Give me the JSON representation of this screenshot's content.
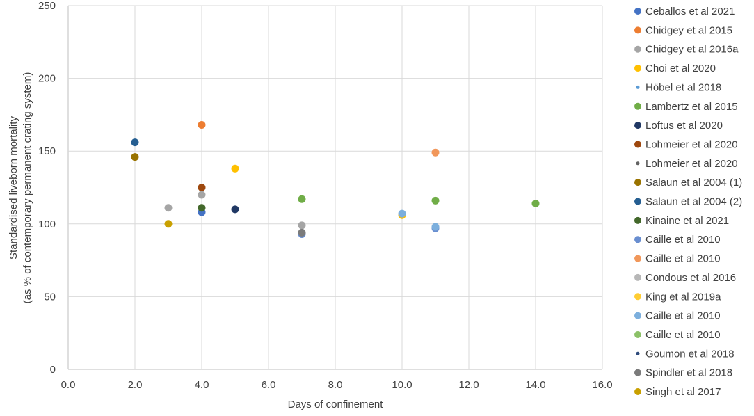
{
  "chart_data": {
    "type": "scatter",
    "title": "",
    "xlabel": "Days of confinement",
    "ylabel_lines": [
      "Standardised liveborn mortality",
      "(as % of contemporary permanent crating system)"
    ],
    "xlim": [
      0,
      16
    ],
    "ylim": [
      0,
      250
    ],
    "x_ticks": [
      "0.0",
      "2.0",
      "4.0",
      "6.0",
      "8.0",
      "10.0",
      "12.0",
      "14.0",
      "16.0"
    ],
    "y_ticks": [
      "0",
      "50",
      "100",
      "150",
      "200",
      "250"
    ],
    "grid": true,
    "legend_position": "right",
    "series": [
      {
        "name": "Ceballos et al 2021",
        "color": "#4472C4",
        "marker": "large",
        "points": [
          [
            4,
            108
          ]
        ]
      },
      {
        "name": "Chidgey et al 2015",
        "color": "#ED7D31",
        "marker": "large",
        "points": [
          [
            4,
            168
          ]
        ]
      },
      {
        "name": "Chidgey et al 2016a",
        "color": "#A5A5A5",
        "marker": "large",
        "points": [
          [
            3,
            111
          ],
          [
            4,
            120
          ],
          [
            7,
            99
          ]
        ]
      },
      {
        "name": "Choi et al 2020",
        "color": "#FFC000",
        "marker": "large",
        "points": [
          [
            5,
            138
          ],
          [
            10,
            106
          ]
        ]
      },
      {
        "name": "Höbel et al 2018",
        "color": "#5B9BD5",
        "marker": "small",
        "points": []
      },
      {
        "name": "Lambertz et al 2015",
        "color": "#70AD47",
        "marker": "large",
        "points": [
          [
            7,
            117
          ],
          [
            11,
            116
          ],
          [
            14,
            114
          ]
        ]
      },
      {
        "name": "Loftus et al 2020",
        "color": "#203864",
        "marker": "large",
        "points": [
          [
            5,
            110
          ]
        ]
      },
      {
        "name": "Lohmeier et al 2020",
        "color": "#9E480E",
        "marker": "large",
        "points": [
          [
            4,
            125
          ]
        ]
      },
      {
        "name": "Lohmeier et al 2020",
        "color": "#636363",
        "marker": "small",
        "points": []
      },
      {
        "name": "Salaun et al 2004 (1)",
        "color": "#997300",
        "marker": "large",
        "points": [
          [
            2,
            146
          ]
        ]
      },
      {
        "name": "Salaun et al 2004 (2)",
        "color": "#255E91",
        "marker": "large",
        "points": [
          [
            2,
            156
          ]
        ]
      },
      {
        "name": "Kinaine et al 2021",
        "color": "#43682B",
        "marker": "large",
        "points": [
          [
            4,
            111
          ]
        ]
      },
      {
        "name": "Caille et al 2010",
        "color": "#698ED0",
        "marker": "large",
        "points": [
          [
            7,
            93
          ],
          [
            11,
            97
          ]
        ]
      },
      {
        "name": "Caille et al 2010",
        "color": "#F1975A",
        "marker": "large",
        "points": [
          [
            11,
            149
          ]
        ]
      },
      {
        "name": "Condous et al 2016",
        "color": "#B7B7B7",
        "marker": "large",
        "points": []
      },
      {
        "name": "King et al 2019a",
        "color": "#FFCD33",
        "marker": "large",
        "points": []
      },
      {
        "name": "Caille et al 2010",
        "color": "#7CAFDD",
        "marker": "large",
        "points": [
          [
            10,
            107
          ],
          [
            11,
            98
          ]
        ]
      },
      {
        "name": "Caille et al 2010",
        "color": "#8CC168",
        "marker": "large",
        "points": []
      },
      {
        "name": "Goumon et al 2018",
        "color": "#2F4B7C",
        "marker": "small",
        "points": []
      },
      {
        "name": "Spindler et al 2018",
        "color": "#7B7B7B",
        "marker": "large",
        "points": [
          [
            7,
            94
          ]
        ]
      },
      {
        "name": "Singh et al 2017",
        "color": "#C9A000",
        "marker": "large",
        "points": [
          [
            3,
            100
          ]
        ]
      }
    ]
  }
}
